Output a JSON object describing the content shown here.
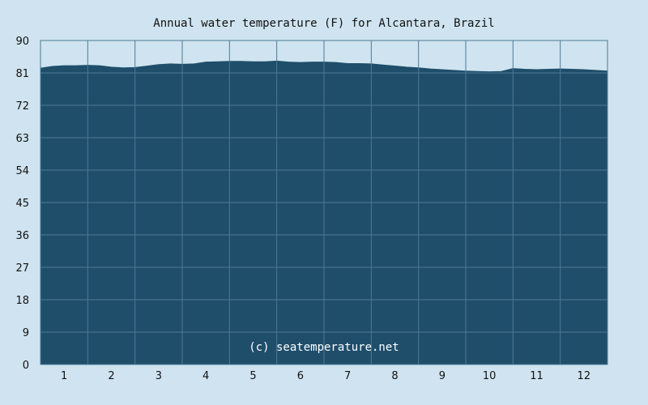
{
  "chart_data": {
    "type": "area",
    "title": "Annual water temperature (F) for Alcantara, Brazil",
    "watermark": "(c) seatemperature.net",
    "xlabel": "",
    "ylabel": "",
    "ylim": [
      0,
      90
    ],
    "yticks": [
      0,
      9,
      18,
      27,
      36,
      45,
      54,
      63,
      72,
      81,
      90
    ],
    "xlim": [
      0.5,
      12.5
    ],
    "xticks": [
      1,
      2,
      3,
      4,
      5,
      6,
      7,
      8,
      9,
      10,
      11,
      12
    ],
    "grid": true,
    "fill_color": "#1f4e6b",
    "grid_color": "#4d7a95",
    "background_color": "#cfe4f0",
    "series": [
      {
        "x": [
          0.5,
          0.75,
          1.0,
          1.25,
          1.5,
          1.75,
          2.0,
          2.25,
          2.5,
          2.75,
          3.0,
          3.25,
          3.5,
          3.75,
          4.0,
          4.25,
          4.5,
          4.75,
          5.0,
          5.25,
          5.5,
          5.75,
          6.0,
          6.25,
          6.5,
          6.75,
          7.0,
          7.25,
          7.5,
          7.75,
          8.0,
          8.25,
          8.5,
          8.75,
          9.0,
          9.25,
          9.5,
          9.75,
          10.0,
          10.25,
          10.5,
          10.75,
          11.0,
          11.25,
          11.5,
          11.75,
          12.0,
          12.25,
          12.5
        ],
        "values": [
          82.3,
          82.8,
          83.0,
          83.0,
          83.1,
          83.0,
          82.6,
          82.4,
          82.5,
          82.9,
          83.3,
          83.5,
          83.4,
          83.5,
          84.0,
          84.1,
          84.2,
          84.2,
          84.1,
          84.1,
          84.3,
          84.0,
          83.9,
          84.0,
          84.0,
          83.9,
          83.6,
          83.6,
          83.5,
          83.2,
          82.9,
          82.6,
          82.4,
          82.1,
          81.9,
          81.7,
          81.5,
          81.4,
          81.3,
          81.4,
          82.2,
          82.0,
          81.9,
          82.0,
          82.1,
          82.0,
          81.9,
          81.7,
          81.5
        ]
      }
    ]
  }
}
